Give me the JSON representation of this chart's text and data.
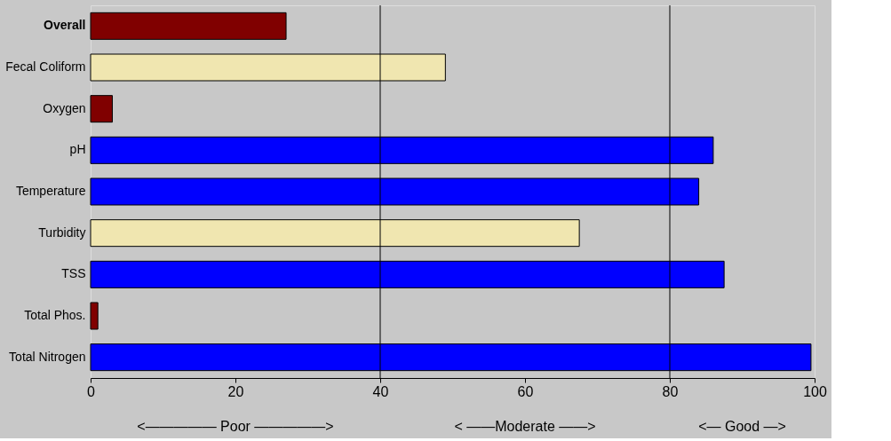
{
  "chart_data": {
    "type": "bar",
    "orientation": "horizontal",
    "categories": [
      "Overall",
      "Fecal Coliform",
      "Oxygen",
      "pH",
      "Temperature",
      "Turbidity",
      "TSS",
      "Total Phos.",
      "Total Nitrogen"
    ],
    "values": [
      27,
      49,
      3,
      86,
      84,
      67.5,
      87.5,
      1,
      99.5
    ],
    "colors": [
      "#800000",
      "#f0e6b0",
      "#800000",
      "#0000ff",
      "#0000ff",
      "#f0e6b0",
      "#0000ff",
      "#800000",
      "#0000ff"
    ],
    "xlim": [
      0,
      100
    ],
    "xticks": [
      0,
      20,
      40,
      60,
      80,
      100
    ],
    "ref_lines": [
      {
        "axis": "x",
        "value": 40
      },
      {
        "axis": "x",
        "value": 80
      }
    ],
    "grid": false,
    "annotations": [
      "<————— Poor —————>",
      "< ——Moderate ——>",
      "<— Good —>"
    ]
  }
}
